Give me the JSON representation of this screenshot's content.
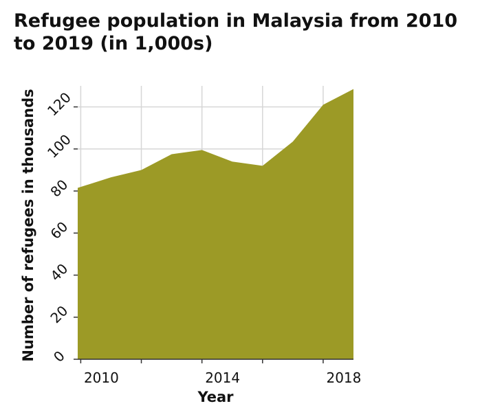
{
  "chart_data": {
    "type": "area",
    "title": "Refugee population in Malaysia from 2010 to 2019 (in 1,000s)",
    "xlabel": "Year",
    "ylabel": "Number of refugees in thousands",
    "x": [
      2009.9,
      2011,
      2012,
      2013,
      2014,
      2015,
      2016,
      2017,
      2018,
      2019
    ],
    "values": [
      81.5,
      86.5,
      90,
      97.5,
      99.5,
      94,
      92,
      103.5,
      121,
      128.5
    ],
    "xlim": [
      2009.9,
      2019
    ],
    "ylim": [
      0,
      130
    ],
    "x_ticks": [
      2010,
      2014,
      2018
    ],
    "x_minor_ticks": [
      2012,
      2016
    ],
    "x_grid": [
      2010,
      2012,
      2014,
      2016,
      2018
    ],
    "y_ticks": [
      0,
      20,
      40,
      60,
      80,
      100,
      120
    ],
    "grid": true,
    "fill_color": "#9c9a26",
    "grid_color": "#d6d6d6",
    "axis_color": "#333333"
  }
}
